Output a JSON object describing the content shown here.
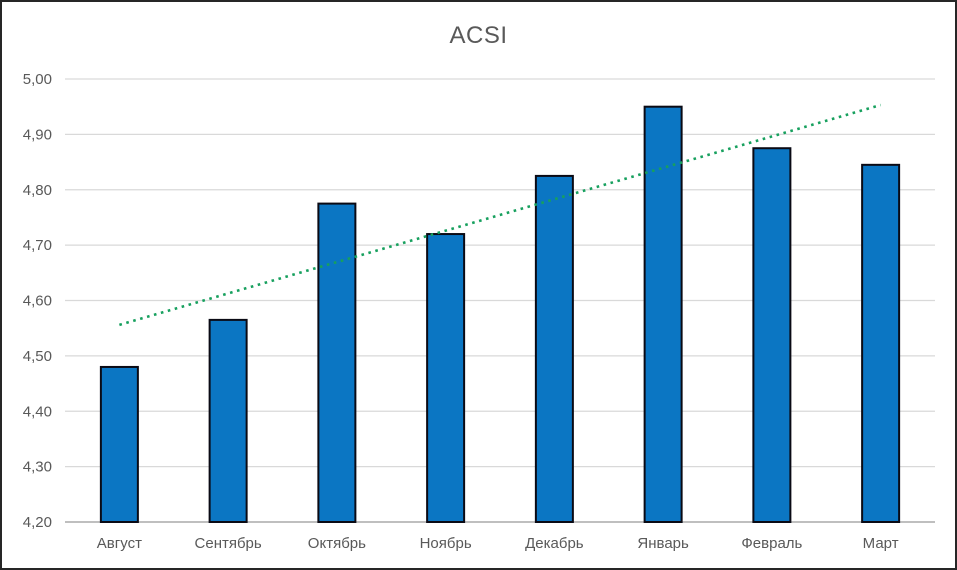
{
  "window": {
    "background": "#ffffff",
    "frame_border_color": "#262626"
  },
  "chart_data": {
    "type": "bar",
    "title": "ACSI",
    "categories": [
      "Август",
      "Сентябрь",
      "Октябрь",
      "Ноябрь",
      "Декабрь",
      "Январь",
      "Февраль",
      "Март"
    ],
    "values": [
      4.48,
      4.565,
      4.775,
      4.72,
      4.825,
      4.95,
      4.875,
      4.845
    ],
    "xlabel": "",
    "ylabel": "",
    "ylim": [
      4.2,
      5.0
    ],
    "ytick_step": 0.1,
    "ytick_labels": [
      "4,20",
      "4,30",
      "4,40",
      "4,50",
      "4,60",
      "4,70",
      "4,80",
      "4,90",
      "5,00"
    ],
    "grid": true,
    "legend": "none",
    "trendline": {
      "type": "linear",
      "style": "dotted",
      "start_value": 4.556,
      "end_value": 4.953,
      "color": "#17A05E"
    },
    "colors": {
      "bar_fill": "#0B76C3",
      "bar_border": "#0A0A14",
      "gridline": "#D9D9D9",
      "axis_line": "#BFBFBF",
      "tick_text": "#595959",
      "title_text": "#595959"
    }
  }
}
